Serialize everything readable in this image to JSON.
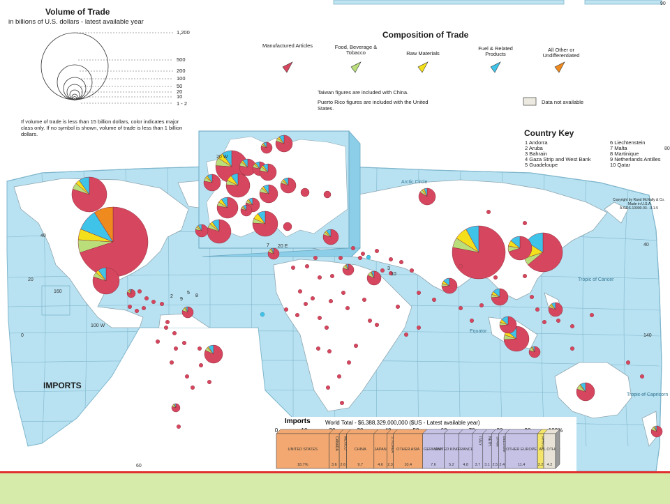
{
  "map_title": "IMPORTS",
  "volume_legend": {
    "title": "Volume of Trade",
    "subtitle": "in billions of U.S. dollars - latest available year",
    "sizes": [
      "1,200",
      "500",
      "200",
      "100",
      "50",
      "20",
      "10",
      "1 - 2"
    ],
    "note": "If volume of trade is less than 15 billion dollars, color indicates major class only. If no symbol is shown, volume of trade is less than 1 billion dollars."
  },
  "composition_legend": {
    "title": "Composition of Trade",
    "items": [
      {
        "label": "Manufactured Articles",
        "color": "#d6475f"
      },
      {
        "label": "Food, Beverage & Tobacco",
        "color": "#b9de7a"
      },
      {
        "label": "Raw Materials",
        "color": "#f4e01a"
      },
      {
        "label": "Fuel & Related Products",
        "color": "#3fc3e8"
      },
      {
        "label": "All Other or Undifferentiated",
        "color": "#ef8a1e"
      }
    ],
    "notes": [
      "Taiwan figures are included with China.",
      "Puerto Rico figures are included with the United States."
    ],
    "no_data_label": "Data not available"
  },
  "country_key": {
    "title": "Country Key",
    "items": [
      "1  Andorra",
      "2  Aruba",
      "3  Bahrain",
      "4  Gaza Strip and West Bank",
      "5  Guadeloupe",
      "6  Liechtenstein",
      "7  Malta",
      "8  Martinique",
      "9  Netherlands Antilles",
      "10  Qatar"
    ]
  },
  "copyright": [
    "Copyright by Rand McNally & Co.",
    "Made in U.S.A.",
    "A-GDS-10000-03-   -3-1-5"
  ],
  "map_labels": {
    "arctic_circle": "Arctic Circle",
    "tropic_cancer": "Tropic of Cancer",
    "equator": "Equator",
    "tropic_capricorn": "Tropic of Capricorn",
    "lon_100w": "100 W",
    "lon_20w": "20 W",
    "lon_20e": "20 E",
    "lon_160": "160",
    "lon_140": "140",
    "lat_40": "40",
    "lat_20": "20",
    "lat_0": "0",
    "lat_60": "60",
    "right_40": "40",
    "right_80": "80",
    "right_90": "90"
  },
  "map_numbers": [
    "7",
    "2",
    "9",
    "5",
    "8",
    "3",
    "10"
  ],
  "chart_data": {
    "type": "bar",
    "title": "Imports",
    "subtitle": "World Total - $6,388,329,000,000 ($US - Latest available year)",
    "axis_ticks": [
      "0",
      "10",
      "20",
      "30",
      "40",
      "50",
      "60",
      "70",
      "80",
      "90",
      "100%"
    ],
    "segments": [
      {
        "label": "UNITED STATES",
        "value": 18.7,
        "value_label": "18.7%",
        "color": "#f2a870"
      },
      {
        "label": "CANADA",
        "value": 3.6,
        "value_label": "3.6",
        "color": "#f2a870"
      },
      {
        "label": "MEXICO",
        "value": 2.6,
        "value_label": "2.6",
        "color": "#f2a870"
      },
      {
        "label": "CHINA",
        "value": 9.7,
        "value_label": "9.7",
        "color": "#f2a870"
      },
      {
        "label": "JAPAN",
        "value": 4.6,
        "value_label": "4.6",
        "color": "#f2a870"
      },
      {
        "label": "S. KOREA",
        "value": 2.3,
        "value_label": "2.3",
        "color": "#f2a870"
      },
      {
        "label": "OTHER ASIA",
        "value": 10.4,
        "value_label": "10.4",
        "color": "#f2a870"
      },
      {
        "label": "GERMANY",
        "value": 7.6,
        "value_label": "7.6",
        "color": "#c5c2e6"
      },
      {
        "label": "UNITED KINGDOM",
        "value": 5.2,
        "value_label": "5.2",
        "color": "#c5c2e6"
      },
      {
        "label": "FRANCE",
        "value": 4.8,
        "value_label": "4.8",
        "color": "#c5c2e6"
      },
      {
        "label": "ITALY",
        "value": 3.7,
        "value_label": "3.7",
        "color": "#c5c2e6"
      },
      {
        "label": "NETH.",
        "value": 3.1,
        "value_label": "3.1",
        "color": "#c5c2e6"
      },
      {
        "label": "SPAIN",
        "value": 2.5,
        "value_label": "2.5",
        "color": "#c5c2e6"
      },
      {
        "label": "BELGIUM",
        "value": 2.4,
        "value_label": "2.4",
        "color": "#c5c2e6"
      },
      {
        "label": "OTHER EUROPE",
        "value": 11.4,
        "value_label": "11.4",
        "color": "#c5c2e6"
      },
      {
        "label": "AFRICA",
        "value": 2.2,
        "value_label": "2.2",
        "color": "#f4e46a"
      },
      {
        "label": "ALL OTHER",
        "value": 4.2,
        "value_label": "4.2",
        "color": "#e8e2d6"
      }
    ]
  }
}
